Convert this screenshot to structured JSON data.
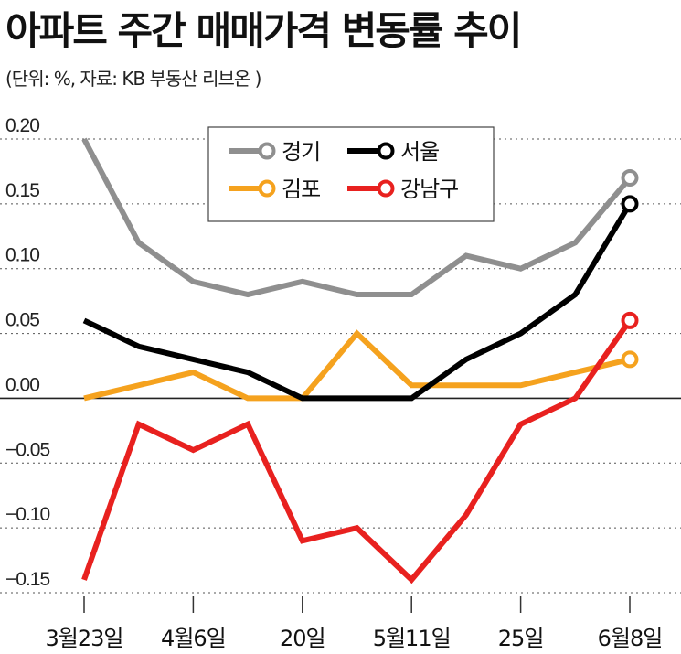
{
  "header": {
    "title": "아파트 주간 매매가격 변동률 추이",
    "subtitle": "(단위: %, 자료: KB 부동산 리브온 )"
  },
  "chart_data": {
    "type": "line",
    "title": "아파트 주간 매매가격 변동률 추이",
    "unit": "%",
    "source": "KB 부동산 리브온",
    "x_tick_labels": [
      "3월23일",
      "4월6일",
      "20일",
      "5월11일",
      "25일",
      "6월8일"
    ],
    "x_tick_positions": [
      0,
      2,
      4,
      6,
      8,
      10
    ],
    "ylim": [
      -0.15,
      0.2
    ],
    "y_ticks": [
      0.2,
      0.15,
      0.1,
      0.05,
      0.0,
      -0.05,
      -0.1,
      -0.15
    ],
    "y_tick_labels": [
      "0.20",
      "0.15",
      "0.10",
      "0.05",
      "0.00",
      "−0.05",
      "−0.10",
      "−0.15"
    ],
    "grid": "horizontal dotted",
    "legend_position": "top-right",
    "series": [
      {
        "name": "경기",
        "color": "#8f8f8f",
        "values": [
          0.2,
          0.12,
          0.09,
          0.08,
          0.09,
          0.08,
          0.08,
          0.11,
          0.1,
          0.12,
          0.17
        ]
      },
      {
        "name": "서울",
        "color": "#000000",
        "values": [
          0.06,
          0.04,
          0.03,
          0.02,
          0.0,
          0.0,
          0.0,
          0.03,
          0.05,
          0.08,
          0.15
        ]
      },
      {
        "name": "김포",
        "color": "#f5a21e",
        "values": [
          0.0,
          0.01,
          0.02,
          0.0,
          0.0,
          0.05,
          0.01,
          0.01,
          0.01,
          0.02,
          0.03
        ]
      },
      {
        "name": "강남구",
        "color": "#e8211f",
        "values": [
          -0.14,
          -0.02,
          -0.04,
          -0.02,
          -0.11,
          -0.1,
          -0.14,
          -0.09,
          -0.02,
          0.0,
          0.06
        ]
      }
    ]
  }
}
